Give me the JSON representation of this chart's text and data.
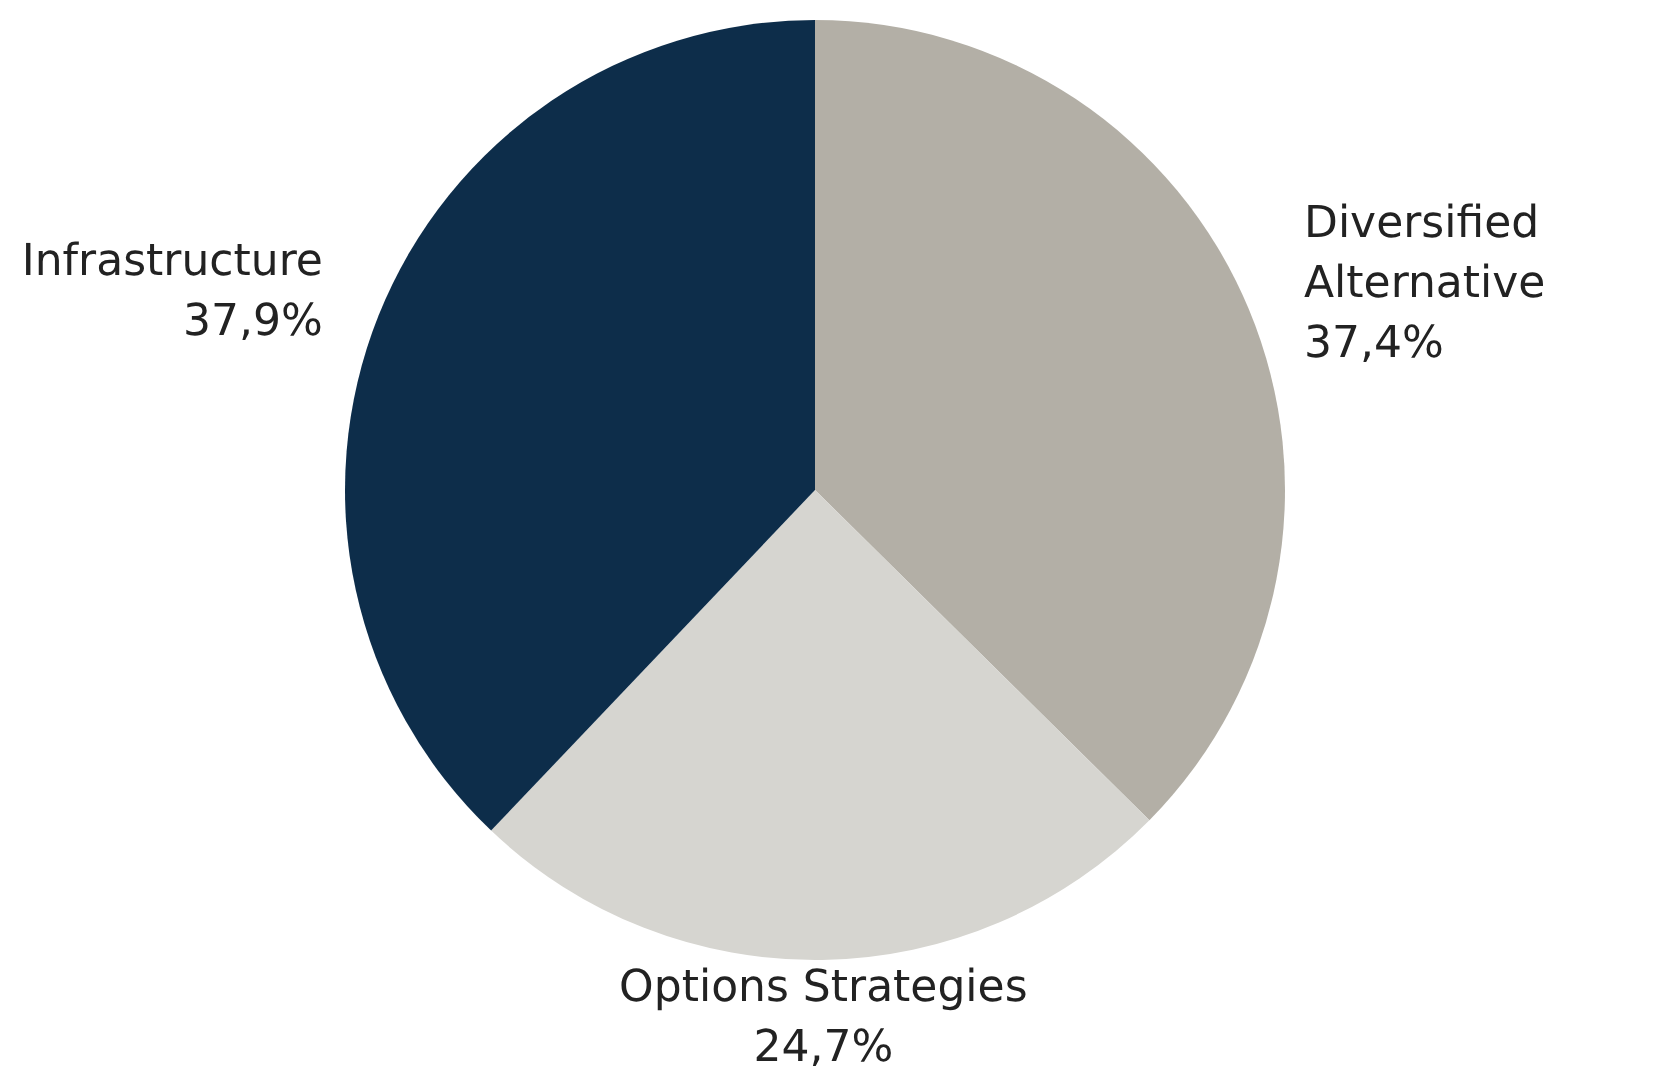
{
  "chart_data": {
    "type": "pie",
    "categories": [
      "Diversified Alternative",
      "Options Strategies",
      "Infrastructure"
    ],
    "values": [
      37.4,
      24.7,
      37.9
    ],
    "colors": [
      "#b3afa6",
      "#d6d5d0",
      "#0d2d4a"
    ],
    "value_labels": [
      "37,4%",
      "24,7%",
      "37,9%"
    ]
  }
}
